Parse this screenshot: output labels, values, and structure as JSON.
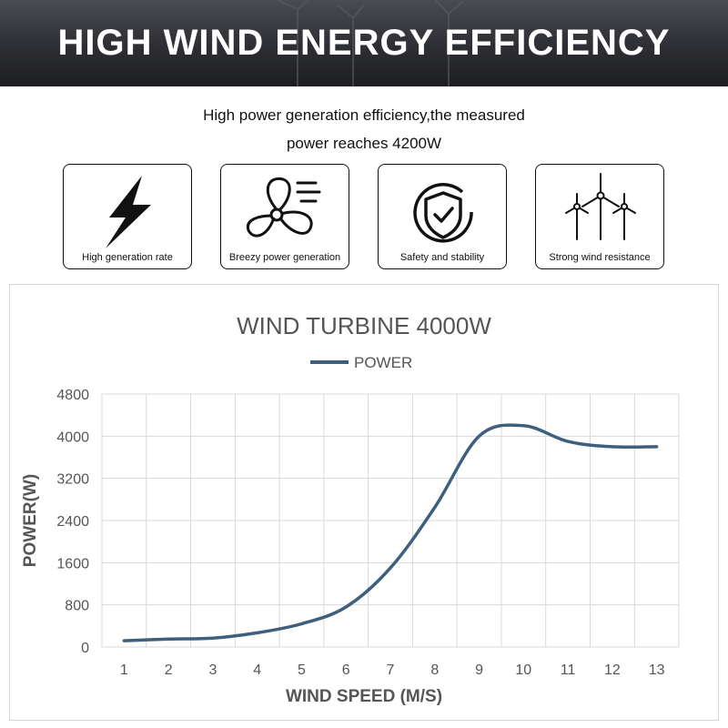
{
  "banner": {
    "title": "HIGH WIND ENERGY EFFICIENCY"
  },
  "subtitle": {
    "line1": "High power generation efficiency,the measured",
    "line2": "power reaches 4200W"
  },
  "features": [
    {
      "icon": "lightning-bolt-icon",
      "label": "High generation rate"
    },
    {
      "icon": "fan-breeze-icon",
      "label": "Breezy power generation"
    },
    {
      "icon": "shield-check-icon",
      "label": "Safety and stability"
    },
    {
      "icon": "wind-turbines-icon",
      "label": "Strong wind resistance"
    }
  ],
  "colors": {
    "line": "#3e5f7e",
    "grid": "#d9d9d9",
    "text": "#555555"
  },
  "chart_data": {
    "type": "line",
    "title": "WIND TURBINE 4000W",
    "xlabel": "WIND SPEED (M/S)",
    "ylabel": "POWER(W)",
    "legend": "top-center",
    "grid": true,
    "x": [
      1,
      2,
      3,
      4,
      5,
      6,
      7,
      8,
      9,
      10,
      11,
      12,
      13
    ],
    "xlim": [
      0.5,
      13.5
    ],
    "ylim": [
      0,
      4800
    ],
    "yticks": [
      0,
      800,
      1600,
      2400,
      3200,
      4000,
      4800
    ],
    "series": [
      {
        "name": "POWER",
        "values": [
          120,
          150,
          170,
          270,
          440,
          760,
          1500,
          2650,
          4000,
          4200,
          3900,
          3800,
          3800
        ]
      }
    ]
  }
}
